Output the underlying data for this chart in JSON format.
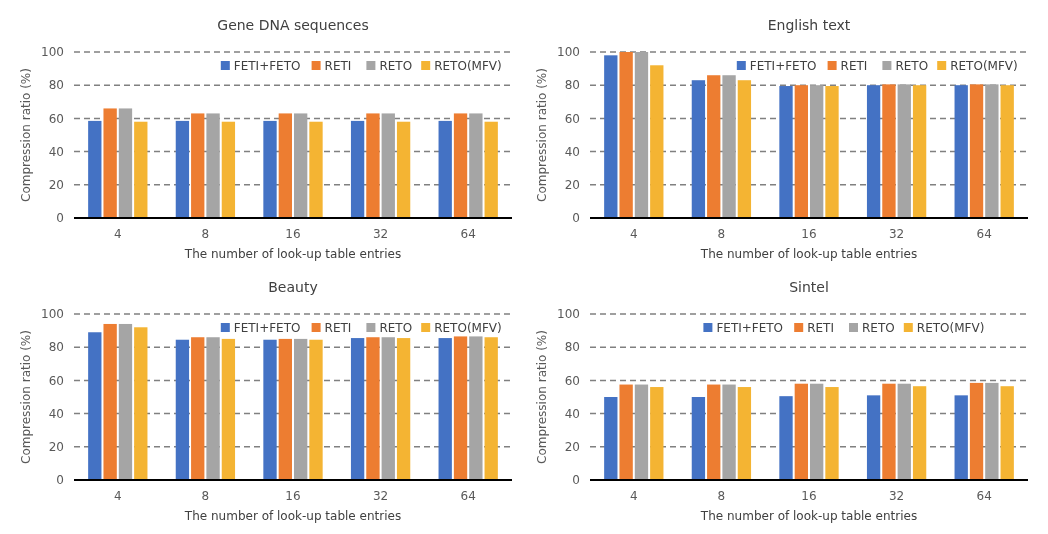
{
  "chart_data": [
    {
      "type": "bar",
      "title": "Gene DNA sequences",
      "xlabel": "The number of look-up table entries",
      "ylabel": "Compression ratio (%)",
      "categories": [
        "4",
        "8",
        "16",
        "32",
        "64"
      ],
      "ylim": [
        0,
        100
      ],
      "yticks": [
        0,
        20,
        40,
        60,
        80,
        100
      ],
      "grid": "y",
      "legend": "top right",
      "series": [
        {
          "name": "FETI+FETO",
          "color": "#4472c4",
          "values": [
            58.5,
            58.5,
            58.5,
            58.5,
            58.5
          ]
        },
        {
          "name": "RETI",
          "color": "#ed7d31",
          "values": [
            66,
            63,
            63,
            63,
            63
          ]
        },
        {
          "name": "RETO",
          "color": "#a5a5a5",
          "values": [
            66,
            63,
            63,
            63,
            63
          ]
        },
        {
          "name": "RETO(MFV)",
          "color": "#f4b433",
          "values": [
            58,
            58,
            58,
            58,
            58
          ]
        }
      ]
    },
    {
      "type": "bar",
      "title": "English text",
      "xlabel": "The number of look-up table entries",
      "ylabel": "Compression ratio (%)",
      "categories": [
        "4",
        "8",
        "16",
        "32",
        "64"
      ],
      "ylim": [
        0,
        100
      ],
      "yticks": [
        0,
        20,
        40,
        60,
        80,
        100
      ],
      "grid": "y",
      "legend": "top right",
      "series": [
        {
          "name": "FETI+FETO",
          "color": "#4472c4",
          "values": [
            98,
            83,
            79.5,
            80,
            80
          ]
        },
        {
          "name": "RETI",
          "color": "#ed7d31",
          "values": [
            100,
            86,
            80,
            80.5,
            80.5
          ]
        },
        {
          "name": "RETO",
          "color": "#a5a5a5",
          "values": [
            100,
            86,
            80,
            80.5,
            80.5
          ]
        },
        {
          "name": "RETO(MFV)",
          "color": "#f4b433",
          "values": [
            92,
            83,
            79.5,
            80,
            80
          ]
        }
      ]
    },
    {
      "type": "bar",
      "title": "Beauty",
      "xlabel": "The number of look-up table entries",
      "ylabel": "Compression ratio (%)",
      "categories": [
        "4",
        "8",
        "16",
        "32",
        "64"
      ],
      "ylim": [
        0,
        100
      ],
      "yticks": [
        0,
        20,
        40,
        60,
        80,
        100
      ],
      "grid": "y",
      "legend": "top right",
      "series": [
        {
          "name": "FETI+FETO",
          "color": "#4472c4",
          "values": [
            89,
            84.5,
            84.5,
            85.5,
            85.5
          ]
        },
        {
          "name": "RETI",
          "color": "#ed7d31",
          "values": [
            94,
            86,
            85,
            86,
            86.5
          ]
        },
        {
          "name": "RETO",
          "color": "#a5a5a5",
          "values": [
            94,
            86,
            85,
            86,
            86.5
          ]
        },
        {
          "name": "RETO(MFV)",
          "color": "#f4b433",
          "values": [
            92,
            85,
            84.5,
            85.5,
            86
          ]
        }
      ]
    },
    {
      "type": "bar",
      "title": "Sintel",
      "xlabel": "The number of look-up table entries",
      "ylabel": "Compression ratio (%)",
      "categories": [
        "4",
        "8",
        "16",
        "32",
        "64"
      ],
      "ylim": [
        0,
        100
      ],
      "yticks": [
        0,
        20,
        40,
        60,
        80,
        100
      ],
      "grid": "y",
      "legend": "top",
      "series": [
        {
          "name": "FETI+FETO",
          "color": "#4472c4",
          "values": [
            50,
            50,
            50.5,
            51,
            51
          ]
        },
        {
          "name": "RETI",
          "color": "#ed7d31",
          "values": [
            57.5,
            57.5,
            58,
            58,
            58.5
          ]
        },
        {
          "name": "RETO",
          "color": "#a5a5a5",
          "values": [
            57.5,
            57.5,
            58,
            58,
            58.5
          ]
        },
        {
          "name": "RETO(MFV)",
          "color": "#f4b433",
          "values": [
            56,
            56,
            56,
            56.5,
            56.5
          ]
        }
      ]
    }
  ]
}
